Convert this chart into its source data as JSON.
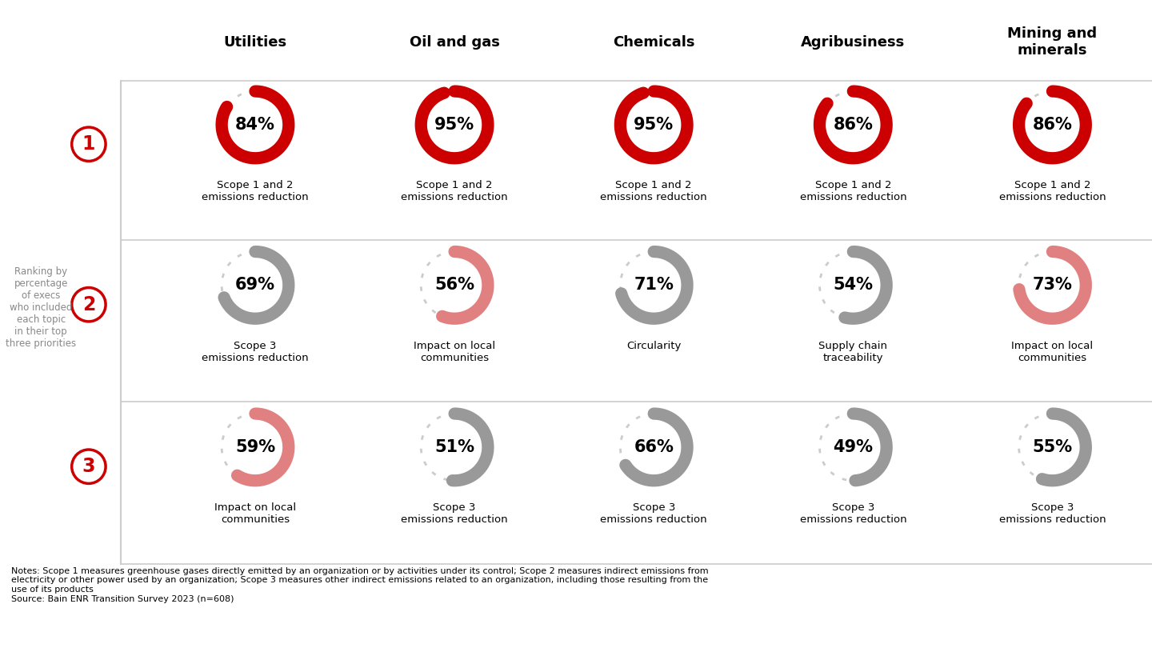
{
  "columns": [
    "Utilities",
    "Oil and gas",
    "Chemicals",
    "Agribusiness",
    "Mining and\nminerals"
  ],
  "rows": [
    {
      "rank": 1,
      "data": [
        {
          "pct": 84,
          "label": "Scope 1 and 2\nemissions reduction",
          "arc_color": "#CC0000"
        },
        {
          "pct": 95,
          "label": "Scope 1 and 2\nemissions reduction",
          "arc_color": "#CC0000"
        },
        {
          "pct": 95,
          "label": "Scope 1 and 2\nemissions reduction",
          "arc_color": "#CC0000"
        },
        {
          "pct": 86,
          "label": "Scope 1 and 2\nemissions reduction",
          "arc_color": "#CC0000"
        },
        {
          "pct": 86,
          "label": "Scope 1 and 2\nemissions reduction",
          "arc_color": "#CC0000"
        }
      ]
    },
    {
      "rank": 2,
      "data": [
        {
          "pct": 69,
          "label": "Scope 3\nemissions reduction",
          "arc_color": "#999999"
        },
        {
          "pct": 56,
          "label": "Impact on local\ncommunities",
          "arc_color": "#e08080"
        },
        {
          "pct": 71,
          "label": "Circularity",
          "arc_color": "#999999"
        },
        {
          "pct": 54,
          "label": "Supply chain\ntraceability",
          "arc_color": "#999999"
        },
        {
          "pct": 73,
          "label": "Impact on local\ncommunities",
          "arc_color": "#e08080"
        }
      ]
    },
    {
      "rank": 3,
      "data": [
        {
          "pct": 59,
          "label": "Impact on local\ncommunities",
          "arc_color": "#e08080"
        },
        {
          "pct": 51,
          "label": "Scope 3\nemissions reduction",
          "arc_color": "#999999"
        },
        {
          "pct": 66,
          "label": "Scope 3\nemissions reduction",
          "arc_color": "#999999"
        },
        {
          "pct": 49,
          "label": "Scope 3\nemissions reduction",
          "arc_color": "#999999"
        },
        {
          "pct": 55,
          "label": "Scope 3\nemissions reduction",
          "arc_color": "#999999"
        }
      ]
    }
  ],
  "sidebar_text": "Ranking by\npercentage\nof execs\nwho included\neach topic\nin their top\nthree priorities",
  "notes": "Notes: Scope 1 measures greenhouse gases directly emitted by an organization or by activities under its control; Scope 2 measures indirect emissions from\nelectricity or other power used by an organization; Scope 3 measures other indirect emissions related to an organization, including those resulting from the\nuse of its products\nSource: Bain ENR Transition Survey 2023 (n=608)",
  "red_color": "#CC0000",
  "bg_color": "#ffffff",
  "divider_color": "#cccccc",
  "header_fontsize": 13,
  "pct_fontsize": 15,
  "label_fontsize": 9.5,
  "sidebar_fontsize": 8.5,
  "notes_fontsize": 8.0,
  "rank_fontsize": 17
}
